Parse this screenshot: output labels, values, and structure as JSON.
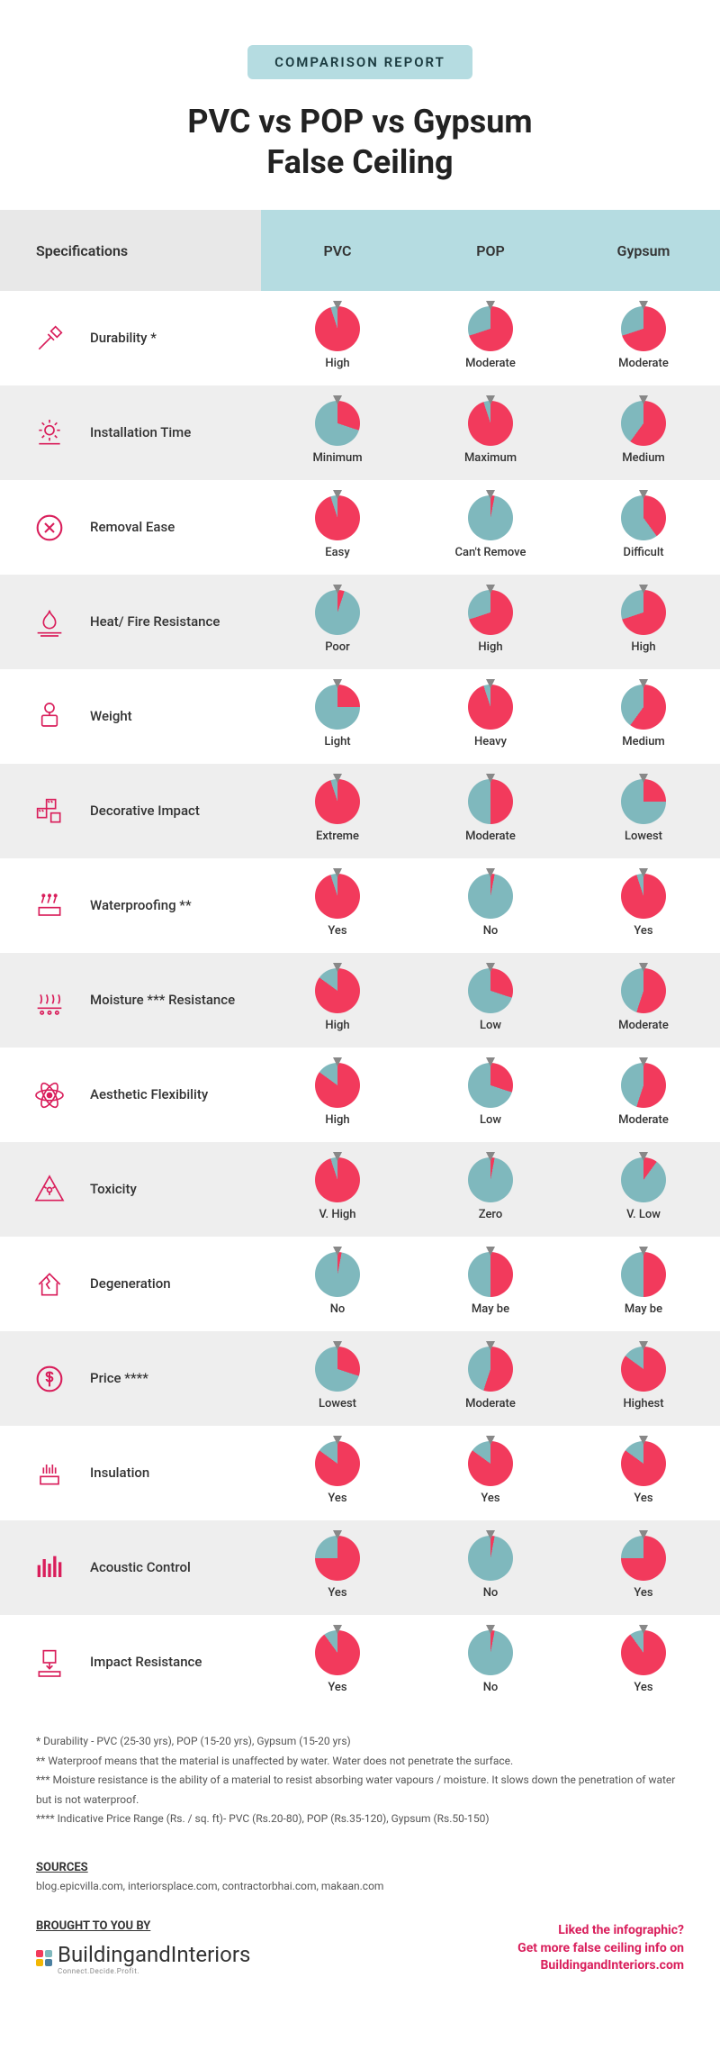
{
  "colors": {
    "accent_teal": "#b5dce1",
    "accent_pink": "#d91e5b",
    "pie_red": "#f23a5c",
    "pie_teal": "#7fb8bd",
    "row_even_bg": "#eeeeee",
    "row_odd_bg": "#ffffff",
    "text": "#333333",
    "footnote_text": "#555555"
  },
  "header": {
    "badge": "COMPARISON REPORT",
    "title_line1": "PVC vs POP vs Gypsum",
    "title_line2": "False Ceiling"
  },
  "table": {
    "spec_header": "Specifications",
    "columns": [
      "PVC",
      "POP",
      "Gypsum"
    ],
    "rows": [
      {
        "icon": "hammer",
        "label": "Durability *",
        "cells": [
          {
            "pct": 95,
            "text": "High"
          },
          {
            "pct": 70,
            "text": "Moderate"
          },
          {
            "pct": 70,
            "text": "Moderate"
          }
        ]
      },
      {
        "icon": "gear",
        "label": "Installation Time",
        "cells": [
          {
            "pct": 30,
            "text": "Minimum"
          },
          {
            "pct": 95,
            "text": "Maximum"
          },
          {
            "pct": 60,
            "text": "Medium"
          }
        ]
      },
      {
        "icon": "x-circle",
        "label": "Removal Ease",
        "cells": [
          {
            "pct": 95,
            "text": "Easy"
          },
          {
            "pct": 3,
            "text": "Can't Remove"
          },
          {
            "pct": 40,
            "text": "Difficult"
          }
        ]
      },
      {
        "icon": "fire",
        "label": "Heat/ Fire Resistance",
        "cells": [
          {
            "pct": 5,
            "text": "Poor"
          },
          {
            "pct": 70,
            "text": "High"
          },
          {
            "pct": 70,
            "text": "High"
          }
        ]
      },
      {
        "icon": "scale",
        "label": "Weight",
        "cells": [
          {
            "pct": 25,
            "text": "Light"
          },
          {
            "pct": 95,
            "text": "Heavy"
          },
          {
            "pct": 60,
            "text": "Medium"
          }
        ]
      },
      {
        "icon": "pattern",
        "label": "Decorative Impact",
        "cells": [
          {
            "pct": 95,
            "text": "Extreme"
          },
          {
            "pct": 50,
            "text": "Moderate"
          },
          {
            "pct": 25,
            "text": "Lowest"
          }
        ]
      },
      {
        "icon": "water",
        "label": "Waterproofing **",
        "cells": [
          {
            "pct": 95,
            "text": "Yes"
          },
          {
            "pct": 3,
            "text": "No"
          },
          {
            "pct": 95,
            "text": "Yes"
          }
        ]
      },
      {
        "icon": "moisture",
        "label": "Moisture *** Resistance",
        "cells": [
          {
            "pct": 85,
            "text": "High"
          },
          {
            "pct": 30,
            "text": "Low"
          },
          {
            "pct": 55,
            "text": "Moderate"
          }
        ]
      },
      {
        "icon": "atom",
        "label": "Aesthetic Flexibility",
        "cells": [
          {
            "pct": 85,
            "text": "High"
          },
          {
            "pct": 30,
            "text": "Low"
          },
          {
            "pct": 55,
            "text": "Moderate"
          }
        ]
      },
      {
        "icon": "toxic",
        "label": "Toxicity",
        "cells": [
          {
            "pct": 95,
            "text": "V. High"
          },
          {
            "pct": 3,
            "text": "Zero"
          },
          {
            "pct": 10,
            "text": "V. Low"
          }
        ]
      },
      {
        "icon": "house-broken",
        "label": "Degeneration",
        "cells": [
          {
            "pct": 3,
            "text": "No"
          },
          {
            "pct": 50,
            "text": "May be"
          },
          {
            "pct": 50,
            "text": "May be"
          }
        ]
      },
      {
        "icon": "dollar",
        "label": "Price ****",
        "cells": [
          {
            "pct": 30,
            "text": "Lowest"
          },
          {
            "pct": 55,
            "text": "Moderate"
          },
          {
            "pct": 85,
            "text": "Highest"
          }
        ]
      },
      {
        "icon": "insulation",
        "label": "Insulation",
        "cells": [
          {
            "pct": 85,
            "text": "Yes"
          },
          {
            "pct": 85,
            "text": "Yes"
          },
          {
            "pct": 85,
            "text": "Yes"
          }
        ]
      },
      {
        "icon": "acoustic",
        "label": "Acoustic Control",
        "cells": [
          {
            "pct": 75,
            "text": "Yes"
          },
          {
            "pct": 3,
            "text": "No"
          },
          {
            "pct": 75,
            "text": "Yes"
          }
        ]
      },
      {
        "icon": "impact",
        "label": "Impact Resistance",
        "cells": [
          {
            "pct": 90,
            "text": "Yes"
          },
          {
            "pct": 3,
            "text": "No"
          },
          {
            "pct": 90,
            "text": "Yes"
          }
        ]
      }
    ]
  },
  "footnotes": [
    "* Durability - PVC (25-30 yrs), POP (15-20 yrs), Gypsum (15-20 yrs)",
    "** Waterproof means that the material is unaffected by water. Water does not penetrate the surface.",
    "*** Moisture resistance is the ability of a material to resist absorbing water vapours / moisture. It slows down the penetration of water but is not waterproof.",
    "**** Indicative Price Range (Rs. / sq. ft)- PVC (Rs.20-80), POP (Rs.35-120), Gypsum (Rs.50-150)"
  ],
  "sources": {
    "title": "SOURCES",
    "list": "blog.epicvilla.com, interiorsplace.com, contractorbhai.com, makaan.com"
  },
  "footer": {
    "brought_title": "BROUGHT TO YOU BY",
    "brand": "BuildingandInteriors",
    "brand_tag": "Connect.Decide.Profit.",
    "brand_dot_colors": [
      "#f23a5c",
      "#7fb8bd",
      "#f2b705",
      "#4a7fa0"
    ],
    "cta_line1": "Liked the infographic?",
    "cta_line2": "Get more false ceiling info on",
    "cta_line3": "BuildingandInteriors.com"
  }
}
